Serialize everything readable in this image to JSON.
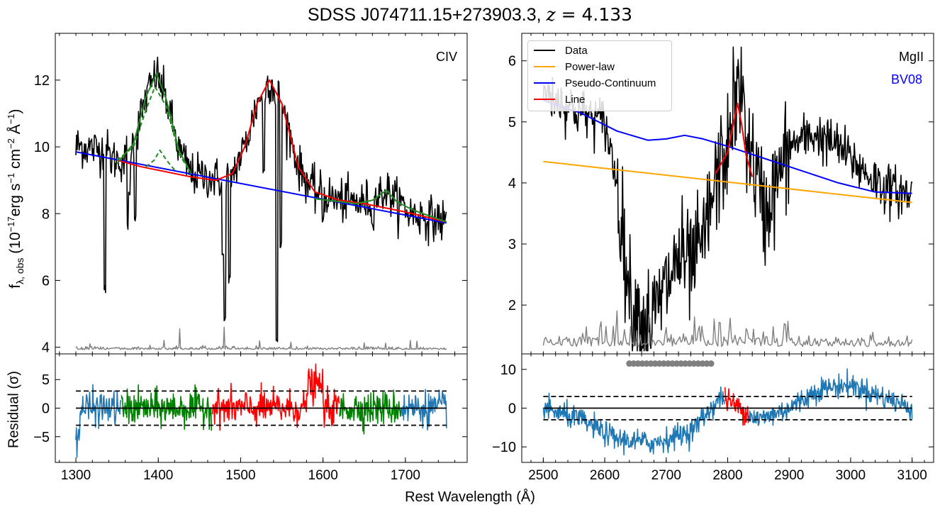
{
  "figure": {
    "title_prefix": "SDSS J074711.15+273903.3, ",
    "title_z": "z",
    "title_eq": " = 4.133",
    "xlabel": "Rest Wavelength (Å)",
    "ylabel_top": "f",
    "ylabel_top_sub": "λ, obs",
    "ylabel_top_units": " (10",
    "ylabel_top_exp": "−17",
    "ylabel_top_rest": "erg s",
    "ylabel_bottom": "Residual (σ)",
    "civ_label": "CIV",
    "mgii_label": "MgII",
    "bv08_label": "BV08"
  },
  "legend": [
    {
      "label": "Data",
      "color": "#000000"
    },
    {
      "label": "Power-law",
      "color": "#ffa500"
    },
    {
      "label": "Pseudo-Continuum",
      "color": "#0000ff"
    },
    {
      "label": "Line",
      "color": "#ff0000"
    }
  ],
  "chart_data": [
    {
      "type": "line",
      "panel": "CIV spectrum",
      "xlim": [
        1275,
        1775
      ],
      "ylim": [
        3.8,
        13.4
      ],
      "yticks": [
        4,
        6,
        8,
        10,
        12
      ],
      "series": [
        {
          "color": "#0000ff",
          "x": [
            1300,
            1750
          ],
          "y": [
            9.85,
            7.72
          ]
        },
        {
          "color": "#ff0000",
          "x": [
            1350,
            1380,
            1400,
            1440,
            1470,
            1490,
            1505,
            1520,
            1535,
            1550,
            1570,
            1590,
            1620,
            1650,
            1700,
            1750
          ],
          "y": [
            9.6,
            9.4,
            9.3,
            9.1,
            9.0,
            9.2,
            10.0,
            11.3,
            12.0,
            11.3,
            9.4,
            8.65,
            8.4,
            8.3,
            8.05,
            7.75
          ]
        },
        {
          "color": "#228b22",
          "x": [
            1350,
            1370,
            1385,
            1398,
            1410,
            1425,
            1440
          ],
          "y": [
            9.5,
            10.1,
            11.5,
            12.2,
            11.4,
            9.9,
            9.2
          ]
        },
        {
          "color": "#228b22",
          "x": [
            1590,
            1640,
            1660,
            1677,
            1690,
            1710,
            1750
          ],
          "y": [
            8.45,
            8.3,
            8.4,
            8.7,
            8.35,
            8.1,
            7.75
          ]
        },
        {
          "color": "#228b22",
          "dashed": true,
          "x": [
            1350,
            1370,
            1385,
            1396,
            1410,
            1425,
            1440
          ],
          "y": [
            9.6,
            10.0,
            11.1,
            11.8,
            11.2,
            9.8,
            9.2
          ]
        },
        {
          "color": "#228b22",
          "dashed": true,
          "x": [
            1385,
            1395,
            1402,
            1410,
            1420
          ],
          "y": [
            9.4,
            9.6,
            9.9,
            9.6,
            9.3
          ]
        },
        {
          "color": "#808080",
          "x": [
            1300,
            1425,
            1426,
            1428,
            1475,
            1480,
            1483,
            1550,
            1600,
            1700,
            1750
          ],
          "y": [
            3.95,
            3.95,
            4.6,
            3.95,
            3.95,
            4.6,
            3.95,
            3.95,
            4.2,
            4.1,
            3.95
          ]
        }
      ]
    },
    {
      "type": "line",
      "panel": "MgII spectrum",
      "xlim": [
        2465,
        3135
      ],
      "ylim": [
        1.2,
        6.45
      ],
      "yticks": [
        2,
        3,
        4,
        5,
        6
      ],
      "series": [
        {
          "name": "Power-law",
          "color": "#ffa500",
          "x": [
            2500,
            3100
          ],
          "y": [
            4.35,
            3.68
          ]
        },
        {
          "name": "Pseudo-Continuum",
          "color": "#0000ff",
          "x": [
            2500,
            2560,
            2620,
            2670,
            2700,
            2730,
            2760,
            2800,
            2860,
            2920,
            2980,
            3040,
            3100
          ],
          "y": [
            5.35,
            5.15,
            4.85,
            4.7,
            4.72,
            4.78,
            4.72,
            4.6,
            4.4,
            4.2,
            4.0,
            3.85,
            3.83
          ]
        },
        {
          "name": "Line",
          "color": "#ff0000",
          "x": [
            2780,
            2800,
            2810,
            2816,
            2822,
            2830,
            2840
          ],
          "y": [
            4.15,
            4.5,
            5.0,
            5.3,
            5.0,
            4.45,
            4.1
          ]
        },
        {
          "color": "#808080",
          "x": [
            2500,
            2600,
            2650,
            2700,
            2750,
            2800,
            2900,
            3000,
            3100
          ],
          "y": [
            1.35,
            1.4,
            1.5,
            1.4,
            1.55,
            1.5,
            1.45,
            1.4,
            1.35
          ]
        }
      ]
    },
    {
      "type": "line",
      "panel": "CIV residual",
      "xlim": [
        1275,
        1775
      ],
      "ylim": [
        -9.5,
        9.5
      ],
      "yticks": [
        -5,
        0,
        5
      ],
      "xticks": [
        1300,
        1400,
        1500,
        1600,
        1700
      ],
      "reference_lines": [
        0,
        3,
        -3
      ]
    },
    {
      "type": "line",
      "panel": "MgII residual",
      "xlim": [
        2465,
        3135
      ],
      "ylim": [
        -14,
        14
      ],
      "yticks": [
        -10,
        0,
        10
      ],
      "xticks": [
        2500,
        2600,
        2700,
        2800,
        2900,
        3000,
        3100
      ],
      "reference_lines": [
        0,
        3,
        -3
      ]
    }
  ]
}
